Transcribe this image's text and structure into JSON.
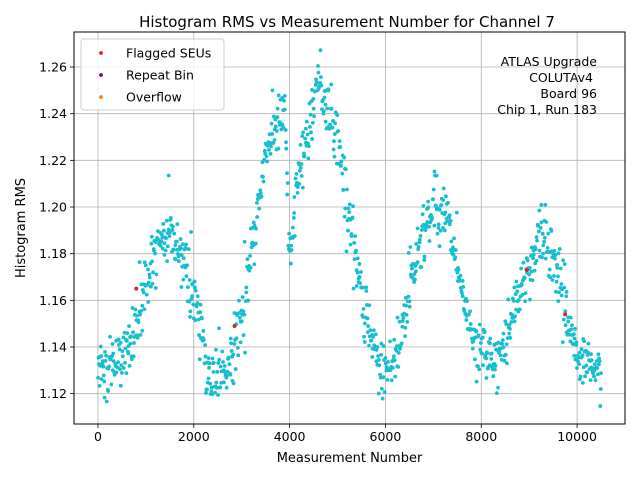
{
  "chart_data": {
    "type": "scatter",
    "title": "Histogram RMS vs Measurement Number for Channel 7",
    "xlabel": "Measurement Number",
    "ylabel": "Histogram RMS",
    "xlim": [
      -500,
      11000
    ],
    "ylim": [
      1.107,
      1.275
    ],
    "xticks": [
      0,
      2000,
      4000,
      6000,
      8000,
      10000
    ],
    "yticks": [
      1.12,
      1.14,
      1.16,
      1.18,
      1.2,
      1.22,
      1.24,
      1.26
    ],
    "ytick_labels": [
      "1.12",
      "1.14",
      "1.16",
      "1.18",
      "1.20",
      "1.22",
      "1.24",
      "1.26"
    ],
    "grid": true,
    "legend_position": "top-left",
    "legend": [
      {
        "label": "Flagged SEUs",
        "color": "#d62728"
      },
      {
        "label": "Repeat Bin",
        "color": "#800080"
      },
      {
        "label": "Overflow",
        "color": "#ff7f0e"
      }
    ],
    "annotation": [
      "ATLAS Upgrade",
      "COLUTAv4",
      "Board 96",
      "Chip 1, Run 183"
    ],
    "series": [
      {
        "name": "Measurements",
        "color": "#17becf",
        "n_points": 1050,
        "x_range": [
          0,
          10500
        ],
        "envelope_note": "piecewise-linear trend of Histogram RMS vs measurement number",
        "trend_x": [
          0,
          300,
          700,
          1100,
          1500,
          1800,
          2000,
          2300,
          2600,
          2900,
          3100,
          3500,
          3900,
          4000,
          4200,
          4600,
          5000,
          5300,
          5600,
          5900,
          6200,
          6600,
          7000,
          7300,
          7600,
          7800,
          8000,
          8300,
          8600,
          9000,
          9300,
          9700,
          10000,
          10500
        ],
        "trend_y": [
          1.133,
          1.132,
          1.14,
          1.175,
          1.19,
          1.178,
          1.162,
          1.13,
          1.124,
          1.145,
          1.16,
          1.225,
          1.24,
          1.175,
          1.215,
          1.255,
          1.23,
          1.19,
          1.15,
          1.13,
          1.133,
          1.175,
          1.202,
          1.195,
          1.16,
          1.145,
          1.138,
          1.132,
          1.148,
          1.175,
          1.19,
          1.165,
          1.135,
          1.127
        ],
        "noise": 0.006
      },
      {
        "name": "Flagged SEUs",
        "color": "#d62728",
        "points": [
          {
            "x": 800,
            "y": 1.165
          },
          {
            "x": 2850,
            "y": 1.149
          },
          {
            "x": 8950,
            "y": 1.173
          },
          {
            "x": 9750,
            "y": 1.154
          }
        ]
      }
    ]
  }
}
